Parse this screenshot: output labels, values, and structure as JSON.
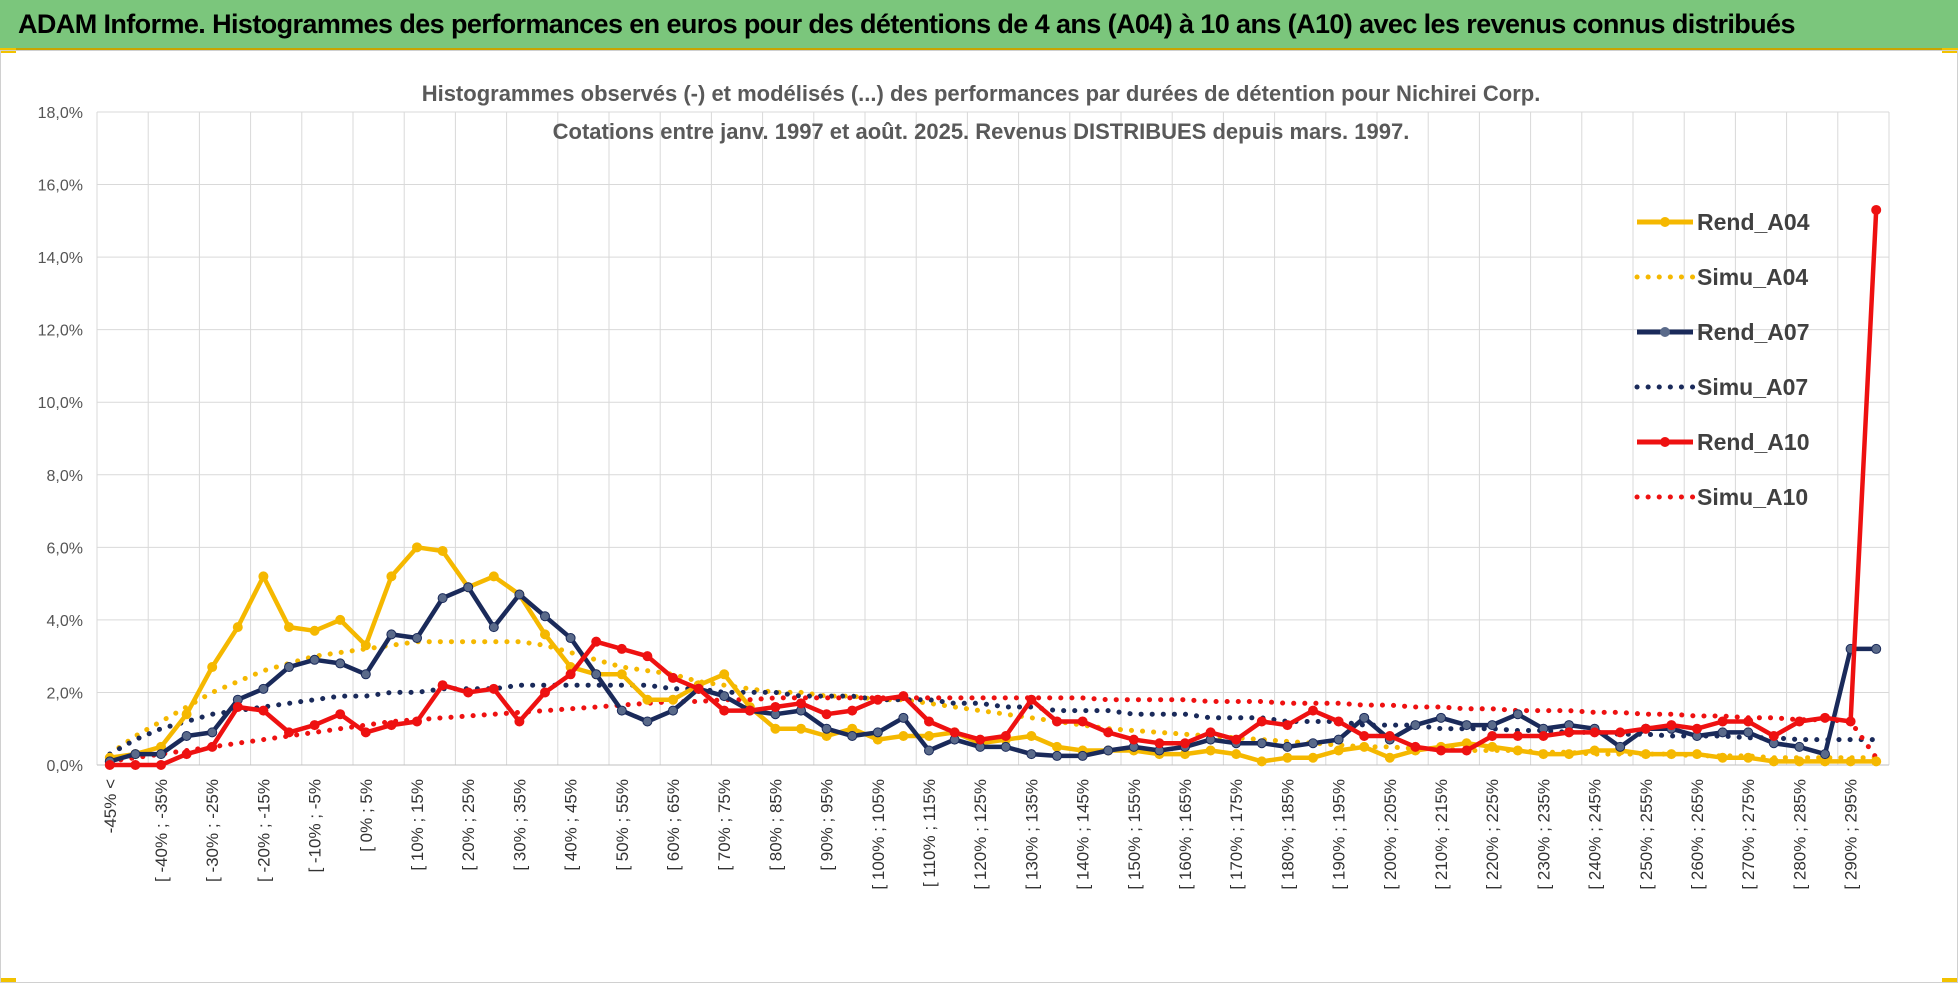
{
  "header": {
    "title": "ADAM Informe. Histogrammes des performances en euros pour des détentions de 4 ans (A04) à 10 ans (A10) avec les revenus connus distribués"
  },
  "chart_data": {
    "type": "line",
    "title_line1": "Histogrammes observés (-) et modélisés (...) des performances par durées de détention pour Nichirei Corp.",
    "title_line2": "Cotations entre janv. 1997 et août. 2025. Revenus DISTRIBUES depuis mars. 1997.",
    "ylim": [
      0,
      18
    ],
    "yticks": [
      "0,0%",
      "2,0%",
      "4,0%",
      "6,0%",
      "8,0%",
      "10,0%",
      "12,0%",
      "14,0%",
      "16,0%",
      "18,0%"
    ],
    "grid": true,
    "legend_position": "right",
    "x_labels_shown": [
      "-45% <",
      "[ -40% ; -35%",
      "[ -30% ; -25%",
      "[ -20% ; -15%",
      "[ -10% ; -5%",
      "[ 0% ; 5%",
      "[ 10% ; 15%",
      "[ 20% ; 25%",
      "[ 30% ; 35%",
      "[ 40% ; 45%",
      "[ 50% ; 55%",
      "[ 60% ; 65%",
      "[ 70% ; 75%",
      "[ 80% ; 85%",
      "[ 90% ; 95%",
      "[ 100% ; 105%",
      "[ 110% ; 115%",
      "[ 120% ; 125%",
      "[ 130% ; 135%",
      "[ 140% ; 145%",
      "[ 150% ; 155%",
      "[ 160% ; 165%",
      "[ 170% ; 175%",
      "[ 180% ; 185%",
      "[ 190% ; 195%",
      "[ 200% ; 205%",
      "[ 210% ; 215%",
      "[ 220% ; 225%",
      "[ 230% ; 235%",
      "[ 240% ; 245%",
      "[ 250% ; 255%",
      "[ 260% ; 265%",
      "[ 270% ; 275%",
      "[ 280% ; 285%",
      "[ 290% ; 295%"
    ],
    "bin_count": 70,
    "series": [
      {
        "name": "Rend_A04",
        "style": "solid",
        "marker": true,
        "color": "#f5b800",
        "values": [
          0.2,
          0.3,
          0.5,
          1.4,
          2.7,
          3.8,
          5.2,
          3.8,
          3.7,
          4.0,
          3.3,
          5.2,
          6.0,
          5.9,
          4.9,
          5.2,
          4.7,
          3.6,
          2.7,
          2.5,
          2.5,
          1.8,
          1.8,
          2.2,
          2.5,
          1.6,
          1.0,
          1.0,
          0.8,
          1.0,
          0.7,
          0.8,
          0.8,
          0.9,
          0.6,
          0.7,
          0.8,
          0.5,
          0.4,
          0.4,
          0.4,
          0.3,
          0.3,
          0.4,
          0.3,
          0.1,
          0.2,
          0.2,
          0.4,
          0.5,
          0.2,
          0.4,
          0.5,
          0.6,
          0.5,
          0.4,
          0.3,
          0.3,
          0.4,
          0.4,
          0.3,
          0.3,
          0.3,
          0.2,
          0.2,
          0.1,
          0.1,
          0.1,
          0.1,
          0.1
        ]
      },
      {
        "name": "Simu_A04",
        "style": "dotted",
        "marker": false,
        "color": "#f5b800",
        "values": [
          0.3,
          0.8,
          1.2,
          1.6,
          2.0,
          2.3,
          2.6,
          2.8,
          3.0,
          3.1,
          3.2,
          3.3,
          3.4,
          3.4,
          3.4,
          3.4,
          3.4,
          3.3,
          3.1,
          2.9,
          2.7,
          2.6,
          2.5,
          2.3,
          2.2,
          2.1,
          2.0,
          2.0,
          1.9,
          1.9,
          1.8,
          1.8,
          1.7,
          1.6,
          1.5,
          1.4,
          1.3,
          1.2,
          1.1,
          1.0,
          0.95,
          0.9,
          0.85,
          0.8,
          0.75,
          0.7,
          0.65,
          0.6,
          0.55,
          0.5,
          0.5,
          0.45,
          0.45,
          0.4,
          0.4,
          0.4,
          0.35,
          0.35,
          0.3,
          0.3,
          0.3,
          0.3,
          0.25,
          0.25,
          0.25,
          0.2,
          0.2,
          0.2,
          0.2,
          0.2
        ]
      },
      {
        "name": "Rend_A07",
        "style": "solid",
        "marker": true,
        "color": "#1a2a5a",
        "values": [
          0.1,
          0.3,
          0.3,
          0.8,
          0.9,
          1.8,
          2.1,
          2.7,
          2.9,
          2.8,
          2.5,
          3.6,
          3.5,
          4.6,
          4.9,
          3.8,
          4.7,
          4.1,
          3.5,
          2.5,
          1.5,
          1.2,
          1.5,
          2.1,
          1.9,
          1.5,
          1.4,
          1.5,
          1.0,
          0.8,
          0.9,
          1.3,
          0.4,
          0.7,
          0.5,
          0.5,
          0.3,
          0.25,
          0.25,
          0.4,
          0.5,
          0.4,
          0.5,
          0.7,
          0.6,
          0.6,
          0.5,
          0.6,
          0.7,
          1.3,
          0.7,
          1.1,
          1.3,
          1.1,
          1.1,
          1.4,
          1.0,
          1.1,
          1.0,
          0.5,
          1.0,
          1.0,
          0.8,
          0.9,
          0.9,
          0.6,
          0.5,
          0.3,
          3.2,
          3.2
        ]
      },
      {
        "name": "Simu_A07",
        "style": "dotted",
        "marker": false,
        "color": "#1a2a5a",
        "values": [
          0.3,
          0.7,
          1.0,
          1.2,
          1.4,
          1.5,
          1.6,
          1.7,
          1.8,
          1.9,
          1.9,
          2.0,
          2.0,
          2.1,
          2.1,
          2.1,
          2.2,
          2.2,
          2.2,
          2.2,
          2.2,
          2.2,
          2.1,
          2.1,
          2.0,
          2.0,
          2.0,
          1.9,
          1.9,
          1.9,
          1.8,
          1.8,
          1.8,
          1.7,
          1.7,
          1.6,
          1.6,
          1.5,
          1.5,
          1.5,
          1.4,
          1.4,
          1.4,
          1.3,
          1.3,
          1.3,
          1.2,
          1.2,
          1.2,
          1.1,
          1.1,
          1.1,
          1.0,
          1.0,
          1.0,
          0.95,
          0.95,
          0.9,
          0.9,
          0.85,
          0.85,
          0.8,
          0.8,
          0.8,
          0.75,
          0.75,
          0.7,
          0.7,
          0.7,
          0.7
        ]
      },
      {
        "name": "Rend_A10",
        "style": "solid",
        "marker": true,
        "color": "#ee1111",
        "values": [
          0.0,
          0.0,
          0.0,
          0.3,
          0.5,
          1.6,
          1.5,
          0.9,
          1.1,
          1.4,
          0.9,
          1.1,
          1.2,
          2.2,
          2.0,
          2.1,
          1.2,
          2.0,
          2.5,
          3.4,
          3.2,
          3.0,
          2.4,
          2.1,
          1.5,
          1.5,
          1.6,
          1.7,
          1.4,
          1.5,
          1.8,
          1.9,
          1.2,
          0.9,
          0.7,
          0.8,
          1.8,
          1.2,
          1.2,
          0.9,
          0.7,
          0.6,
          0.6,
          0.9,
          0.7,
          1.2,
          1.1,
          1.5,
          1.2,
          0.8,
          0.8,
          0.5,
          0.4,
          0.4,
          0.8,
          0.8,
          0.8,
          0.9,
          0.9,
          0.9,
          1.0,
          1.1,
          1.0,
          1.2,
          1.2,
          0.8,
          1.2,
          1.3,
          1.2,
          15.3
        ]
      },
      {
        "name": "Simu_A10",
        "style": "dotted",
        "marker": false,
        "color": "#ee1111",
        "values": [
          0.1,
          0.2,
          0.3,
          0.4,
          0.5,
          0.6,
          0.7,
          0.8,
          0.9,
          1.0,
          1.1,
          1.2,
          1.25,
          1.3,
          1.35,
          1.4,
          1.45,
          1.5,
          1.55,
          1.6,
          1.65,
          1.7,
          1.75,
          1.75,
          1.8,
          1.8,
          1.85,
          1.85,
          1.85,
          1.85,
          1.85,
          1.85,
          1.85,
          1.85,
          1.85,
          1.85,
          1.85,
          1.85,
          1.85,
          1.8,
          1.8,
          1.8,
          1.8,
          1.75,
          1.75,
          1.75,
          1.7,
          1.7,
          1.7,
          1.65,
          1.65,
          1.6,
          1.6,
          1.55,
          1.55,
          1.5,
          1.5,
          1.5,
          1.45,
          1.45,
          1.4,
          1.4,
          1.35,
          1.35,
          1.3,
          1.3,
          1.25,
          1.25,
          1.2,
          0.2
        ]
      }
    ]
  }
}
